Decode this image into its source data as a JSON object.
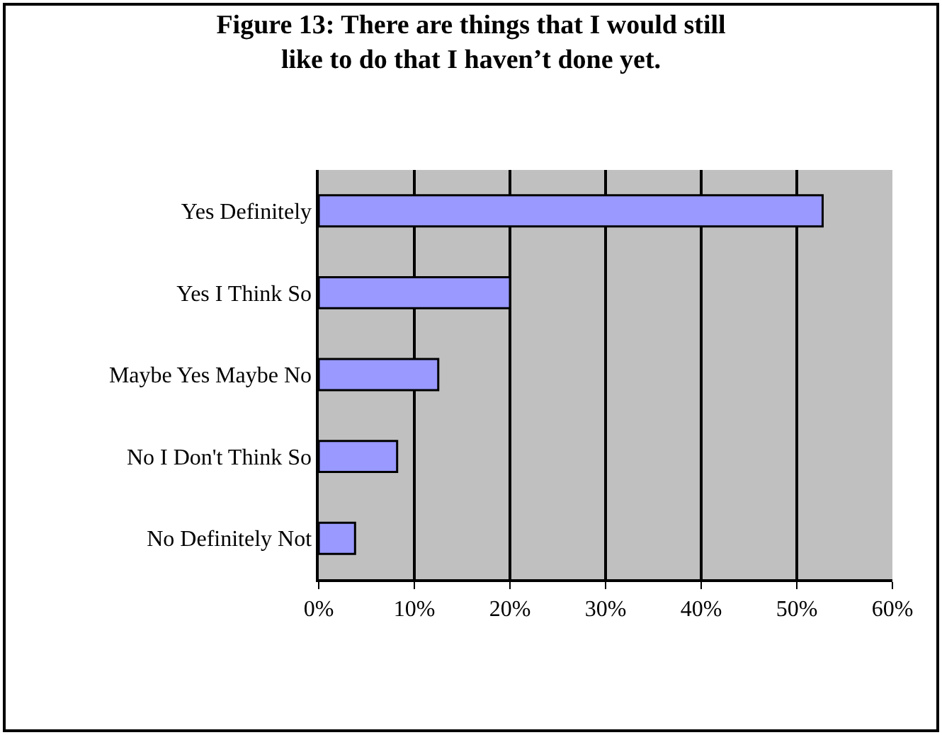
{
  "chart_data": {
    "type": "bar",
    "orientation": "horizontal",
    "title": "Figure 13: There are things that I would still\nlike to do that I haven’t done yet.",
    "categories": [
      "Yes Definitely",
      "Yes I Think So",
      "Maybe Yes Maybe No",
      "No I Don't Think So",
      "No Definitely Not"
    ],
    "values": [
      52.7,
      20.0,
      12.5,
      8.2,
      3.8
    ],
    "color": "#9999ff",
    "xlim": [
      0,
      60
    ],
    "xticks": [
      {
        "value": 0,
        "label": "0%"
      },
      {
        "value": 10,
        "label": "10%"
      },
      {
        "value": 20,
        "label": "20%"
      },
      {
        "value": 30,
        "label": "30%"
      },
      {
        "value": 40,
        "label": "40%"
      },
      {
        "value": 50,
        "label": "50%"
      },
      {
        "value": 60,
        "label": "60%"
      }
    ],
    "grid": "x",
    "legend": false
  }
}
